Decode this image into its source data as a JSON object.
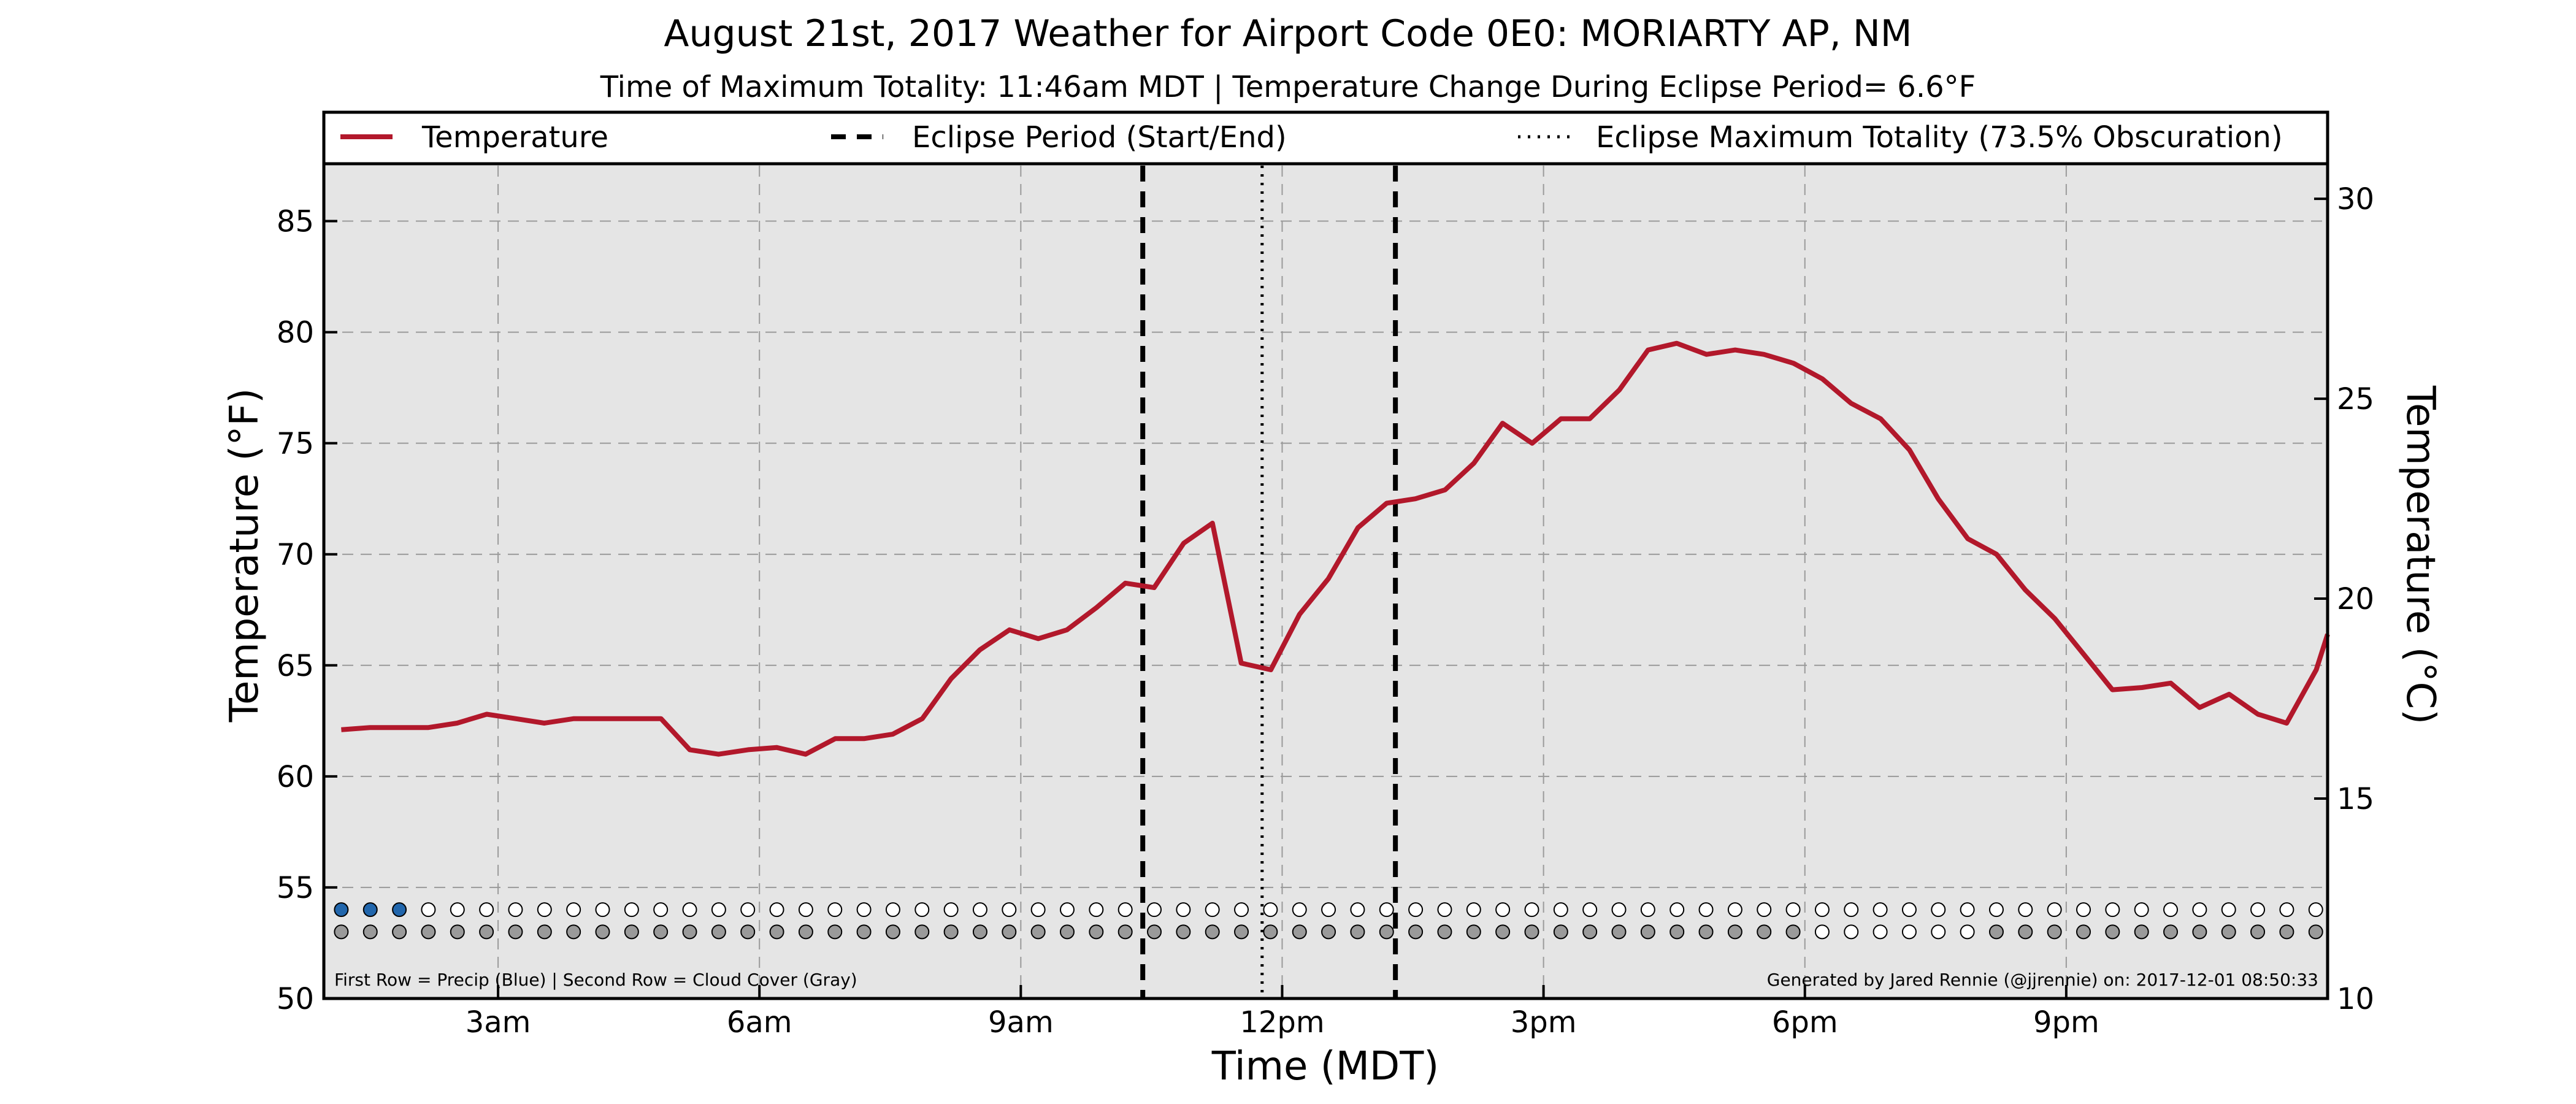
{
  "chart_data": {
    "type": "line",
    "title": "August 21st, 2017 Weather for Airport Code 0E0: MORIARTY AP, NM",
    "subtitle": "Time of Maximum Totality: 11:46am MDT | Temperature Change During Eclipse Period= 6.6°F",
    "xlabel": "Time (MDT)",
    "ylabel": "Temperature (°F)",
    "ylabel_right": "Temperature (°C)",
    "xlim": [
      1.0,
      24.0
    ],
    "ylim": [
      50,
      87.5
    ],
    "ylim_right": [
      10,
      30.83
    ],
    "x_ticks": [
      {
        "x": 3,
        "label": "3am"
      },
      {
        "x": 6,
        "label": "6am"
      },
      {
        "x": 9,
        "label": "9am"
      },
      {
        "x": 12,
        "label": "12pm"
      },
      {
        "x": 15,
        "label": "3pm"
      },
      {
        "x": 18,
        "label": "6pm"
      },
      {
        "x": 21,
        "label": "9pm"
      }
    ],
    "y_ticks": [
      50,
      55,
      60,
      65,
      70,
      75,
      80,
      85
    ],
    "y_ticks_right": [
      10,
      15,
      20,
      25,
      30
    ],
    "grid": true,
    "legend_position": "top",
    "legend": [
      {
        "label": "Temperature",
        "style": "solid"
      },
      {
        "label": "Eclipse Period (Start/End)",
        "style": "dashed"
      },
      {
        "label": "Eclipse Maximum Totality (73.5% Obscuration)",
        "style": "dotted"
      }
    ],
    "series": [
      {
        "name": "Temperature",
        "x": [
          1.2,
          1.53,
          1.87,
          2.2,
          2.53,
          2.87,
          3.2,
          3.53,
          3.87,
          4.2,
          4.53,
          4.87,
          5.2,
          5.53,
          5.87,
          6.2,
          6.53,
          6.87,
          7.2,
          7.53,
          7.87,
          8.2,
          8.53,
          8.87,
          9.2,
          9.53,
          9.87,
          10.2,
          10.53,
          10.87,
          11.2,
          11.53,
          11.87,
          12.2,
          12.53,
          12.87,
          13.2,
          13.53,
          13.87,
          14.2,
          14.53,
          14.87,
          15.2,
          15.53,
          15.87,
          16.2,
          16.53,
          16.87,
          17.2,
          17.53,
          17.87,
          18.2,
          18.53,
          18.87,
          19.2,
          19.53,
          19.87,
          20.2,
          20.53,
          20.87,
          21.2,
          21.53,
          21.87,
          22.2,
          22.53,
          22.87,
          23.2,
          23.53,
          23.87,
          24.0
        ],
        "values": [
          62.1,
          62.2,
          62.2,
          62.2,
          62.4,
          62.8,
          62.6,
          62.4,
          62.6,
          62.6,
          62.6,
          62.6,
          61.2,
          61.0,
          61.2,
          61.3,
          61.0,
          61.7,
          61.7,
          61.9,
          62.6,
          64.4,
          65.7,
          66.6,
          66.2,
          66.6,
          67.6,
          68.7,
          68.5,
          70.5,
          71.4,
          65.1,
          64.8,
          67.3,
          68.9,
          71.2,
          72.3,
          72.5,
          72.9,
          74.1,
          75.9,
          75.0,
          76.1,
          76.1,
          77.4,
          79.2,
          79.5,
          79.0,
          79.2,
          79.0,
          78.6,
          77.9,
          76.8,
          76.1,
          74.7,
          72.5,
          70.7,
          70.0,
          68.4,
          67.1,
          65.5,
          63.9,
          64.0,
          64.2,
          63.1,
          63.7,
          62.8,
          62.4,
          64.8,
          66.4
        ]
      }
    ],
    "eclipse_start_x": 10.4,
    "eclipse_end_x": 13.3,
    "eclipse_max_x": 11.77,
    "precip_row": {
      "y": 54.0,
      "x_start": 1.2,
      "x_step": 0.3333,
      "count": 69,
      "values": [
        1,
        1,
        1,
        0,
        0,
        0,
        0,
        0,
        0,
        0,
        0,
        0,
        0,
        0,
        0,
        0,
        0,
        0,
        0,
        0,
        0,
        0,
        0,
        0,
        0,
        0,
        0,
        0,
        0,
        0,
        0,
        0,
        0,
        0,
        0,
        0,
        0,
        0,
        0,
        0,
        0,
        0,
        0,
        0,
        0,
        0,
        0,
        0,
        0,
        0,
        0,
        0,
        0,
        0,
        0,
        0,
        0,
        0,
        0,
        0,
        0,
        0,
        0,
        0,
        0,
        0,
        0,
        0,
        0
      ]
    },
    "cloud_row": {
      "y": 53.0,
      "x_start": 1.2,
      "x_step": 0.3333,
      "count": 69,
      "values": [
        1,
        1,
        1,
        1,
        1,
        1,
        1,
        1,
        1,
        1,
        1,
        1,
        1,
        1,
        1,
        1,
        1,
        1,
        1,
        1,
        1,
        1,
        1,
        1,
        1,
        1,
        1,
        1,
        1,
        1,
        1,
        1,
        1,
        1,
        1,
        1,
        1,
        1,
        1,
        1,
        1,
        1,
        1,
        1,
        1,
        1,
        1,
        1,
        1,
        1,
        1,
        0,
        0,
        0,
        0,
        0,
        0,
        1,
        1,
        1,
        1,
        1,
        1,
        1,
        1,
        1,
        1,
        1,
        1
      ]
    },
    "footnote_left": "First Row = Precip (Blue) | Second Row = Cloud Cover (Gray)",
    "footnote_right": "Generated by Jared Rennie (@jjrennie) on: 2017-12-01 08:50:33",
    "colors": {
      "temperature": "#b2182b",
      "plot_background": "#e5e5e5",
      "precip": "#2166ac",
      "cloud": "#9a9a9a",
      "empty_marker": "#ffffff"
    }
  }
}
